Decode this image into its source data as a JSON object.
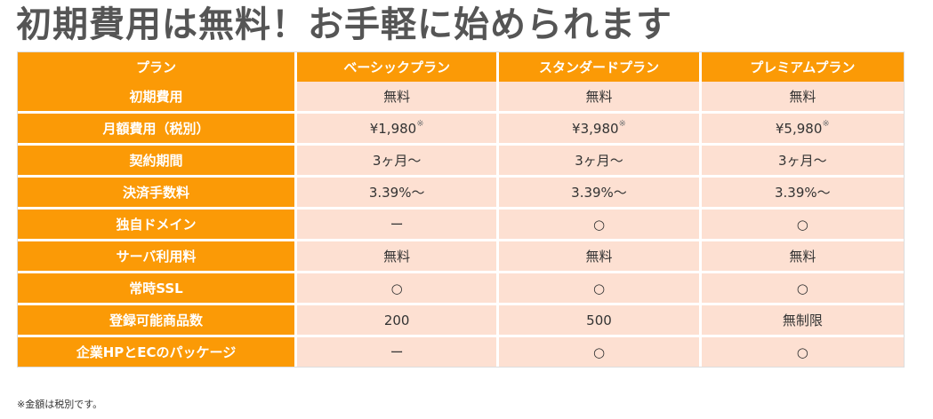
{
  "title": "初期費用は無料！お手軽に始められます",
  "table": {
    "header": {
      "label": "プラン",
      "plans": [
        "ベーシックプラン",
        "スタンダードプラン",
        "プレミアムプラン"
      ]
    },
    "rows": [
      {
        "label": "初期費用",
        "values": [
          "無料",
          "無料",
          "無料"
        ],
        "note": ""
      },
      {
        "label": "月額費用（税別）",
        "values": [
          "¥1,980",
          "¥3,980",
          "¥5,980"
        ],
        "note": "※"
      },
      {
        "label": "契約期間",
        "values": [
          "3ヶ月〜",
          "3ヶ月〜",
          "3ヶ月〜"
        ],
        "note": ""
      },
      {
        "label": "決済手数料",
        "values": [
          "3.39%〜",
          "3.39%〜",
          "3.39%〜"
        ],
        "note": ""
      },
      {
        "label": "独自ドメイン",
        "values": [
          "ー",
          "○",
          "○"
        ],
        "note": ""
      },
      {
        "label": "サーバ利用料",
        "values": [
          "無料",
          "無料",
          "無料"
        ],
        "note": ""
      },
      {
        "label": "常時SSL",
        "values": [
          "○",
          "○",
          "○"
        ],
        "note": ""
      },
      {
        "label": "登録可能商品数",
        "values": [
          "200",
          "500",
          "無制限"
        ],
        "note": ""
      },
      {
        "label": "企業HPとECのパッケージ",
        "values": [
          "ー",
          "○",
          "○"
        ],
        "note": ""
      }
    ]
  },
  "footnote": "※金額は税別です。"
}
